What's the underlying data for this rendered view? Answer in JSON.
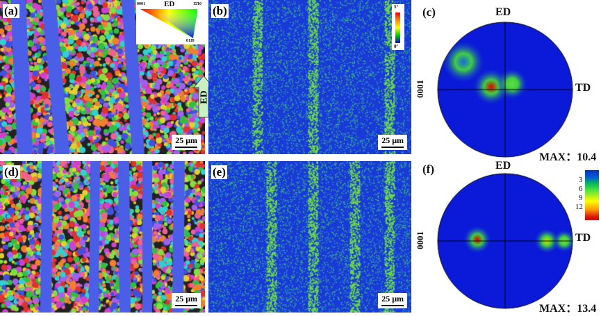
{
  "panels": {
    "a": {
      "label": "(a)",
      "scale": "25 μm"
    },
    "b": {
      "label": "(b)",
      "scale": "25 μm"
    },
    "c": {
      "label": "(c)",
      "top": "ED",
      "right": "TD",
      "left": "0001",
      "max": "MAX：10.4"
    },
    "d": {
      "label": "(d)",
      "scale": "25 μm"
    },
    "e": {
      "label": "(e)",
      "scale": "25 μm"
    },
    "f": {
      "label": "(f)",
      "top": "ED",
      "right": "TD",
      "left": "0001",
      "max": "MAX：13.4"
    }
  },
  "ipf_legend": {
    "title": "ED",
    "corner_left": "0001",
    "corner_right": "1̄2̄10",
    "corner_bottom": "011̄0"
  },
  "misorientation_legend": {
    "max": "5°",
    "min": "0°"
  },
  "arrow": {
    "label": "ED"
  },
  "pf_colorbar": {
    "ticks": [
      "3",
      "6",
      "9",
      "12"
    ]
  }
}
